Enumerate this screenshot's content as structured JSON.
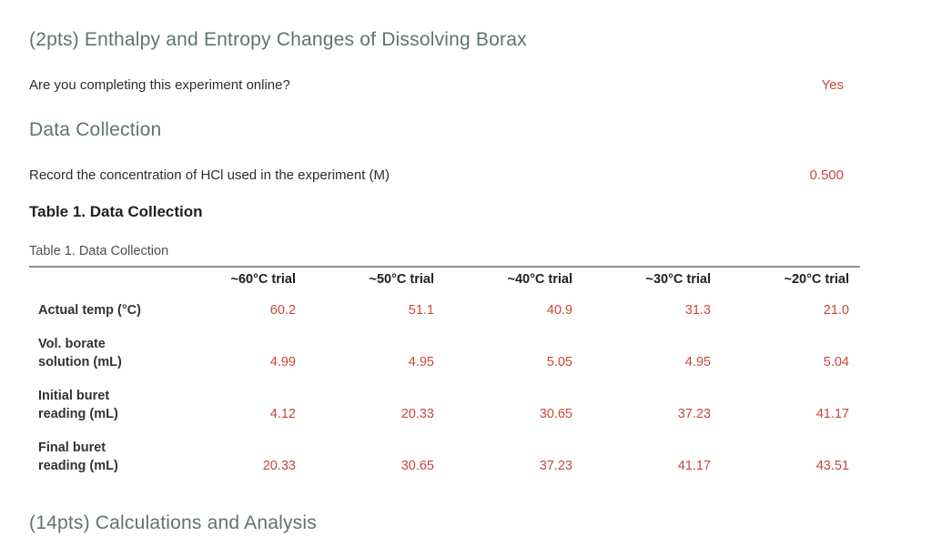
{
  "page": {
    "title": "(2pts) Enthalpy and Entropy Changes of Dissolving Borax",
    "colors": {
      "section_heading": "#5f7470",
      "answer_red": "#c9473a",
      "body_text": "#2d2d2d",
      "table_rule": "#8f8f8f"
    }
  },
  "questions": [
    {
      "prompt": "Are you completing this experiment online?",
      "answer": "Yes"
    },
    {
      "prompt": "Record the concentration of HCl used in the experiment (M)",
      "answer": "0.500"
    }
  ],
  "sections": {
    "data_collection": {
      "heading": "Data Collection"
    },
    "calculations": {
      "heading": "(14pts) Calculations and Analysis"
    }
  },
  "table1": {
    "heading": "Table 1. Data Collection",
    "caption": "Table 1. Data Collection",
    "columns": [
      "~60°C trial",
      "~50°C trial",
      "~40°C trial",
      "~30°C trial",
      "~20°C trial"
    ],
    "rows": [
      {
        "label": "Actual temp (°C)",
        "values": [
          "60.2",
          "51.1",
          "40.9",
          "31.3",
          "21.0"
        ]
      },
      {
        "label": "Vol. borate\nsolution (mL)",
        "values": [
          "4.99",
          "4.95",
          "5.05",
          "4.95",
          "5.04"
        ]
      },
      {
        "label": "Initial buret\nreading (mL)",
        "values": [
          "4.12",
          "20.33",
          "30.65",
          "37.23",
          "41.17"
        ]
      },
      {
        "label": "Final buret\nreading (mL)",
        "values": [
          "20.33",
          "30.65",
          "37.23",
          "41.17",
          "43.51"
        ]
      }
    ]
  }
}
